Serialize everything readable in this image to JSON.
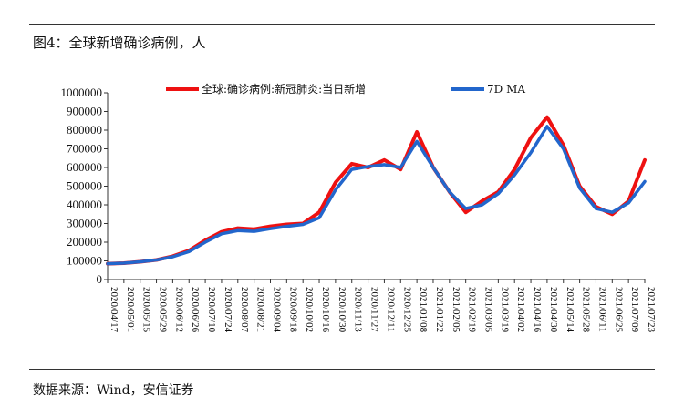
{
  "figure": {
    "title": "图4：全球新增确诊病例，人",
    "source": "数据来源：Wind，安信证券"
  },
  "chart_data": {
    "type": "line",
    "ylim": [
      0,
      1000000
    ],
    "yticks": [
      "0",
      "100000",
      "200000",
      "300000",
      "400000",
      "500000",
      "600000",
      "700000",
      "800000",
      "900000",
      "1000000"
    ],
    "x_dates": [
      "2020/04/17",
      "2020/05/01",
      "2020/05/15",
      "2020/05/29",
      "2020/06/12",
      "2020/06/26",
      "2020/07/10",
      "2020/07/24",
      "2020/08/07",
      "2020/08/21",
      "2020/09/04",
      "2020/09/18",
      "2020/10/02",
      "2020/10/16",
      "2020/10/30",
      "2020/11/13",
      "2020/11/27",
      "2020/12/11",
      "2020/12/25",
      "2021/01/08",
      "2021/01/22",
      "2021/02/05",
      "2021/02/19",
      "2021/03/05",
      "2021/03/19",
      "2021/04/02",
      "2021/04/16",
      "2021/04/30",
      "2021/05/14",
      "2021/05/28",
      "2021/06/11",
      "2021/06/25",
      "2021/07/09",
      "2021/07/23"
    ],
    "series": [
      {
        "name": "全球:确诊病例:新冠肺炎:当日新增",
        "color": "#ee1111",
        "values": [
          85000,
          88000,
          95000,
          105000,
          125000,
          155000,
          210000,
          255000,
          275000,
          270000,
          285000,
          295000,
          300000,
          360000,
          520000,
          620000,
          600000,
          640000,
          590000,
          790000,
          600000,
          470000,
          360000,
          420000,
          470000,
          590000,
          760000,
          870000,
          720000,
          500000,
          390000,
          350000,
          420000,
          640000
        ]
      },
      {
        "name": "7D MA",
        "color": "#2266cc",
        "values": [
          85000,
          88000,
          95000,
          105000,
          122000,
          150000,
          200000,
          245000,
          262000,
          258000,
          272000,
          285000,
          295000,
          330000,
          480000,
          590000,
          605000,
          615000,
          600000,
          740000,
          600000,
          470000,
          380000,
          400000,
          460000,
          560000,
          680000,
          820000,
          700000,
          490000,
          380000,
          360000,
          410000,
          525000
        ]
      }
    ]
  }
}
